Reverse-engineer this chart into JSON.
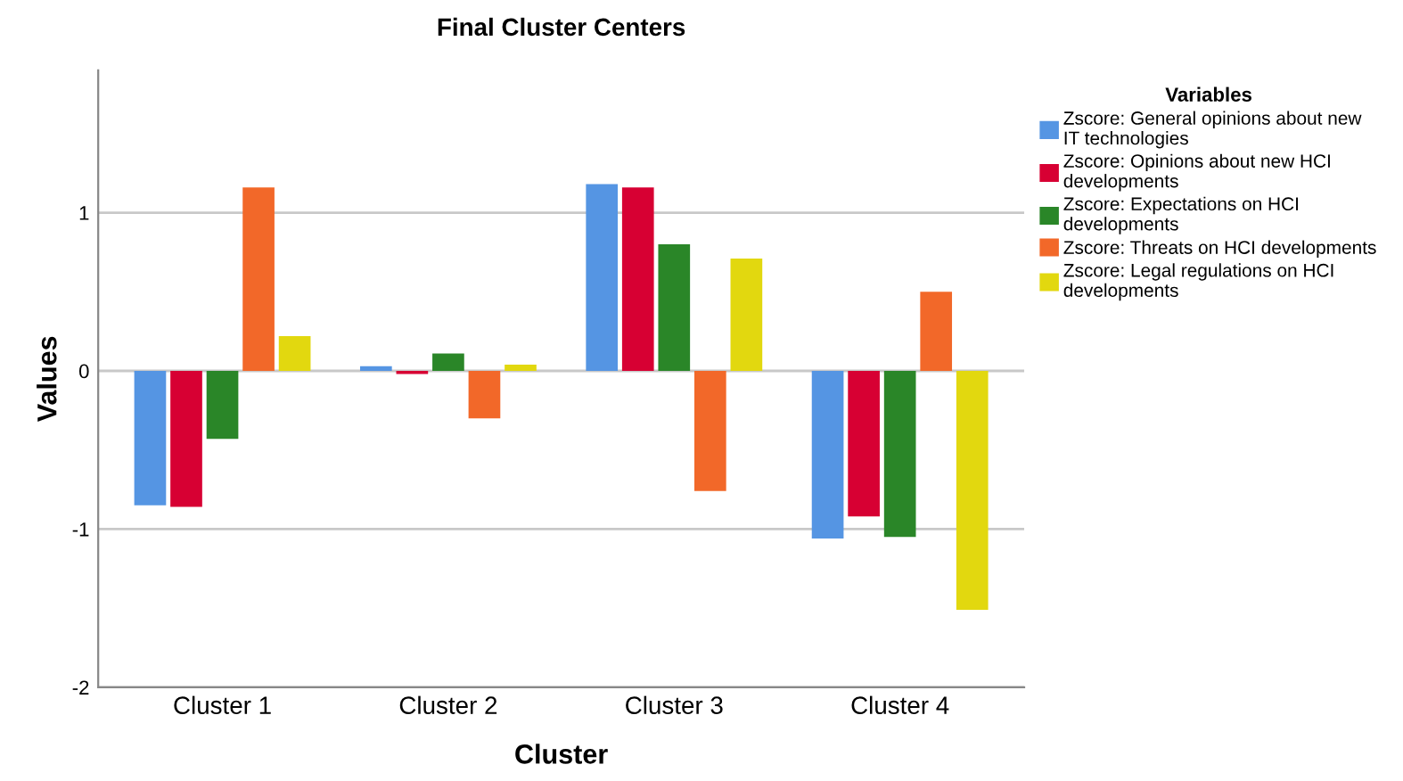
{
  "chart_data": {
    "type": "bar",
    "title": "Final Cluster Centers",
    "xlabel": "Cluster",
    "ylabel": "Values",
    "legend_title": "Variables",
    "legend": "top right",
    "grid": "y",
    "categories": [
      "Cluster 1",
      "Cluster 2",
      "Cluster 3",
      "Cluster 4"
    ],
    "ylim": [
      -2,
      1.9
    ],
    "yticks": [
      -2,
      -1,
      0,
      1
    ],
    "series": [
      {
        "name": "Zscore: General opinions about new IT technologies",
        "color": "#5595e3",
        "values": [
          -0.85,
          0.03,
          1.18,
          -1.06
        ]
      },
      {
        "name": "Zscore: Opinions about new HCI developments",
        "color": "#d70033",
        "values": [
          -0.86,
          -0.02,
          1.16,
          -0.92
        ]
      },
      {
        "name": "Zscore: Expectations on HCI developments",
        "color": "#2a8628",
        "values": [
          -0.43,
          0.11,
          0.8,
          -1.05
        ]
      },
      {
        "name": "Zscore: Threats on HCI developments",
        "color": "#f26829",
        "values": [
          1.16,
          -0.3,
          -0.76,
          0.5
        ]
      },
      {
        "name": "Zscore: Legal regulations on HCI developments",
        "color": "#e2d80f",
        "values": [
          0.22,
          0.04,
          0.71,
          -1.51
        ]
      }
    ]
  }
}
